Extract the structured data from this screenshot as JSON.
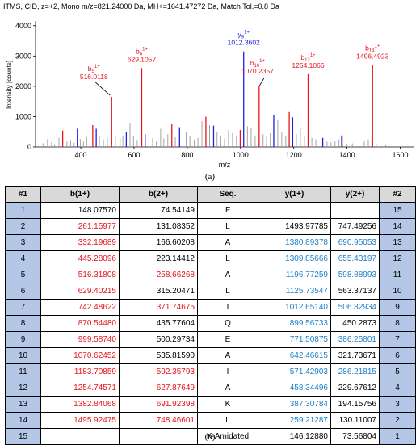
{
  "chart_data": {
    "type": "bar",
    "title": "ITMS, CID, z=+2, Mono m/z=821.24000 Da, MH+=1641.47272 Da, Match Tol.=0.8 Da",
    "xlabel": "m/z",
    "ylabel": "Intensity [counts]",
    "xlim": [
      230,
      1650
    ],
    "ylim": [
      0,
      4100
    ],
    "xticks": [
      400,
      600,
      800,
      1000,
      1200,
      1400,
      1600
    ],
    "yticks": [
      0,
      1000,
      2000,
      3000,
      4000
    ],
    "peaks": [
      {
        "x": 258,
        "y": 120,
        "c": "gray"
      },
      {
        "x": 275,
        "y": 260,
        "c": "gray"
      },
      {
        "x": 290,
        "y": 150,
        "c": "gray"
      },
      {
        "x": 302,
        "y": 90,
        "c": "gray"
      },
      {
        "x": 318,
        "y": 300,
        "c": "gray"
      },
      {
        "x": 332,
        "y": 540,
        "c": "red"
      },
      {
        "x": 348,
        "y": 180,
        "c": "gray"
      },
      {
        "x": 362,
        "y": 230,
        "c": "gray"
      },
      {
        "x": 375,
        "y": 140,
        "c": "gray"
      },
      {
        "x": 387,
        "y": 600,
        "c": "blue"
      },
      {
        "x": 398,
        "y": 260,
        "c": "gray"
      },
      {
        "x": 410,
        "y": 180,
        "c": "gray"
      },
      {
        "x": 422,
        "y": 330,
        "c": "gray"
      },
      {
        "x": 445,
        "y": 720,
        "c": "red"
      },
      {
        "x": 458,
        "y": 600,
        "c": "blue"
      },
      {
        "x": 470,
        "y": 350,
        "c": "gray"
      },
      {
        "x": 485,
        "y": 250,
        "c": "gray"
      },
      {
        "x": 500,
        "y": 300,
        "c": "gray"
      },
      {
        "x": 516,
        "y": 1650,
        "c": "red"
      },
      {
        "x": 530,
        "y": 380,
        "c": "gray"
      },
      {
        "x": 548,
        "y": 290,
        "c": "gray"
      },
      {
        "x": 558,
        "y": 380,
        "c": "gray"
      },
      {
        "x": 571,
        "y": 500,
        "c": "blue"
      },
      {
        "x": 585,
        "y": 800,
        "c": "gray"
      },
      {
        "x": 598,
        "y": 350,
        "c": "gray"
      },
      {
        "x": 612,
        "y": 230,
        "c": "gray"
      },
      {
        "x": 629,
        "y": 2600,
        "c": "red"
      },
      {
        "x": 642,
        "y": 420,
        "c": "blue"
      },
      {
        "x": 656,
        "y": 240,
        "c": "gray"
      },
      {
        "x": 670,
        "y": 290,
        "c": "gray"
      },
      {
        "x": 684,
        "y": 180,
        "c": "gray"
      },
      {
        "x": 700,
        "y": 600,
        "c": "gray"
      },
      {
        "x": 712,
        "y": 280,
        "c": "gray"
      },
      {
        "x": 727,
        "y": 420,
        "c": "gray"
      },
      {
        "x": 742,
        "y": 750,
        "c": "red"
      },
      {
        "x": 755,
        "y": 320,
        "c": "gray"
      },
      {
        "x": 771,
        "y": 650,
        "c": "blue"
      },
      {
        "x": 784,
        "y": 280,
        "c": "gray"
      },
      {
        "x": 796,
        "y": 480,
        "c": "gray"
      },
      {
        "x": 810,
        "y": 350,
        "c": "gray"
      },
      {
        "x": 826,
        "y": 240,
        "c": "gray"
      },
      {
        "x": 840,
        "y": 300,
        "c": "gray"
      },
      {
        "x": 855,
        "y": 850,
        "c": "gray"
      },
      {
        "x": 870,
        "y": 1000,
        "c": "red"
      },
      {
        "x": 884,
        "y": 720,
        "c": "gray"
      },
      {
        "x": 899,
        "y": 700,
        "c": "blue"
      },
      {
        "x": 912,
        "y": 480,
        "c": "gray"
      },
      {
        "x": 926,
        "y": 380,
        "c": "gray"
      },
      {
        "x": 940,
        "y": 270,
        "c": "gray"
      },
      {
        "x": 955,
        "y": 560,
        "c": "gray"
      },
      {
        "x": 970,
        "y": 450,
        "c": "gray"
      },
      {
        "x": 985,
        "y": 380,
        "c": "gray"
      },
      {
        "x": 999,
        "y": 560,
        "c": "red"
      },
      {
        "x": 1012,
        "y": 3150,
        "c": "blue"
      },
      {
        "x": 1026,
        "y": 680,
        "c": "gray"
      },
      {
        "x": 1040,
        "y": 640,
        "c": "gray"
      },
      {
        "x": 1055,
        "y": 380,
        "c": "gray"
      },
      {
        "x": 1070,
        "y": 2000,
        "c": "red"
      },
      {
        "x": 1085,
        "y": 420,
        "c": "gray"
      },
      {
        "x": 1098,
        "y": 330,
        "c": "gray"
      },
      {
        "x": 1112,
        "y": 450,
        "c": "gray"
      },
      {
        "x": 1125,
        "y": 1050,
        "c": "blue"
      },
      {
        "x": 1140,
        "y": 900,
        "c": "gray"
      },
      {
        "x": 1155,
        "y": 480,
        "c": "gray"
      },
      {
        "x": 1170,
        "y": 350,
        "c": "gray"
      },
      {
        "x": 1183,
        "y": 1150,
        "c": "red"
      },
      {
        "x": 1196,
        "y": 980,
        "c": "blue"
      },
      {
        "x": 1210,
        "y": 420,
        "c": "gray"
      },
      {
        "x": 1225,
        "y": 620,
        "c": "gray"
      },
      {
        "x": 1240,
        "y": 380,
        "c": "gray"
      },
      {
        "x": 1254,
        "y": 2400,
        "c": "red"
      },
      {
        "x": 1268,
        "y": 300,
        "c": "gray"
      },
      {
        "x": 1283,
        "y": 250,
        "c": "gray"
      },
      {
        "x": 1309,
        "y": 300,
        "c": "blue"
      },
      {
        "x": 1325,
        "y": 180,
        "c": "gray"
      },
      {
        "x": 1340,
        "y": 150,
        "c": "gray"
      },
      {
        "x": 1355,
        "y": 200,
        "c": "gray"
      },
      {
        "x": 1370,
        "y": 250,
        "c": "gray"
      },
      {
        "x": 1380,
        "y": 380,
        "c": "blue"
      },
      {
        "x": 1382,
        "y": 380,
        "c": "red"
      },
      {
        "x": 1400,
        "y": 100,
        "c": "gray"
      },
      {
        "x": 1420,
        "y": 120,
        "c": "gray"
      },
      {
        "x": 1445,
        "y": 140,
        "c": "gray"
      },
      {
        "x": 1465,
        "y": 180,
        "c": "gray"
      },
      {
        "x": 1480,
        "y": 250,
        "c": "gray"
      },
      {
        "x": 1493,
        "y": 400,
        "c": "gray"
      },
      {
        "x": 1496,
        "y": 2700,
        "c": "red"
      },
      {
        "x": 1510,
        "y": 120,
        "c": "gray"
      },
      {
        "x": 1545,
        "y": 90,
        "c": "gray"
      }
    ],
    "annotations": [
      {
        "ion": "b",
        "sub": "5",
        "sup": "1+",
        "mz": "516.0118",
        "x": 516,
        "y": 1650,
        "color": "red"
      },
      {
        "ion": "b",
        "sub": "6",
        "sup": "1+",
        "mz": "629.1057",
        "x": 629,
        "y": 2600,
        "color": "red"
      },
      {
        "ion": "y",
        "sub": "9",
        "sup": "1+",
        "mz": "1012.3602",
        "x": 1012,
        "y": 3150,
        "color": "blue"
      },
      {
        "ion": "b",
        "sub": "10",
        "sup": "1+",
        "mz": "1070.2357",
        "x": 1070,
        "y": 2000,
        "color": "red"
      },
      {
        "ion": "b",
        "sub": "12",
        "sup": "1+",
        "mz": "1254.1066",
        "x": 1254,
        "y": 2400,
        "color": "red"
      },
      {
        "ion": "b",
        "sub": "14",
        "sup": "1+",
        "mz": "1496.4923",
        "x": 1496,
        "y": 2700,
        "color": "red"
      }
    ],
    "colors": {
      "red": "#e8151b",
      "blue": "#1f1fe0",
      "gray": "#9a9a9a"
    }
  },
  "caption_a": "(a)",
  "caption_b": "(b)",
  "table": {
    "headers": [
      "#1",
      "b(1+)",
      "b(2+)",
      "Seq.",
      "y(1+)",
      "y(2+)",
      "#2"
    ],
    "rows": [
      {
        "n1": "1",
        "b1": "148.07570",
        "b1c": "",
        "b2": "74.54149",
        "b2c": "",
        "seq": "F",
        "y1": "",
        "y1c": "",
        "y2": "",
        "y2c": "",
        "n2": "15"
      },
      {
        "n1": "2",
        "b1": "261.15977",
        "b1c": "red",
        "b2": "131.08352",
        "b2c": "",
        "seq": "L",
        "y1": "1493.97785",
        "y1c": "",
        "y2": "747.49256",
        "y2c": "",
        "n2": "14"
      },
      {
        "n1": "3",
        "b1": "332.19689",
        "b1c": "red",
        "b2": "166.60208",
        "b2c": "",
        "seq": "A",
        "y1": "1380.89378",
        "y1c": "cyan",
        "y2": "690.95053",
        "y2c": "cyan",
        "n2": "13"
      },
      {
        "n1": "4",
        "b1": "445.28096",
        "b1c": "red",
        "b2": "223.14412",
        "b2c": "",
        "seq": "L",
        "y1": "1309.85666",
        "y1c": "cyan",
        "y2": "655.43197",
        "y2c": "cyan",
        "n2": "12"
      },
      {
        "n1": "5",
        "b1": "516.31808",
        "b1c": "red",
        "b2": "258.66268",
        "b2c": "red",
        "seq": "A",
        "y1": "1196.77259",
        "y1c": "cyan",
        "y2": "598.88993",
        "y2c": "cyan",
        "n2": "11"
      },
      {
        "n1": "6",
        "b1": "629.40215",
        "b1c": "red",
        "b2": "315.20471",
        "b2c": "",
        "seq": "L",
        "y1": "1125.73547",
        "y1c": "cyan",
        "y2": "563.37137",
        "y2c": "",
        "n2": "10"
      },
      {
        "n1": "7",
        "b1": "742.48622",
        "b1c": "red",
        "b2": "371.74675",
        "b2c": "red",
        "seq": "I",
        "y1": "1012.65140",
        "y1c": "cyan",
        "y2": "506.82934",
        "y2c": "cyan",
        "n2": "9"
      },
      {
        "n1": "8",
        "b1": "870.54480",
        "b1c": "red",
        "b2": "435.77604",
        "b2c": "",
        "seq": "Q",
        "y1": "899.56733",
        "y1c": "cyan",
        "y2": "450.2873",
        "y2c": "",
        "n2": "8"
      },
      {
        "n1": "9",
        "b1": "999.58740",
        "b1c": "red",
        "b2": "500.29734",
        "b2c": "",
        "seq": "E",
        "y1": "771.50875",
        "y1c": "cyan",
        "y2": "386.25801",
        "y2c": "cyan",
        "n2": "7"
      },
      {
        "n1": "10",
        "b1": "1070.62452",
        "b1c": "red",
        "b2": "535.81590",
        "b2c": "",
        "seq": "A",
        "y1": "642.46615",
        "y1c": "cyan",
        "y2": "321.73671",
        "y2c": "",
        "n2": "6"
      },
      {
        "n1": "11",
        "b1": "1183.70859",
        "b1c": "red",
        "b2": "592.35793",
        "b2c": "red",
        "seq": "I",
        "y1": "571.42903",
        "y1c": "cyan",
        "y2": "286.21815",
        "y2c": "cyan",
        "n2": "5"
      },
      {
        "n1": "12",
        "b1": "1254.74571",
        "b1c": "red",
        "b2": "627.87649",
        "b2c": "red",
        "seq": "A",
        "y1": "458.34496",
        "y1c": "cyan",
        "y2": "229.67612",
        "y2c": "",
        "n2": "4"
      },
      {
        "n1": "13",
        "b1": "1382.84068",
        "b1c": "red",
        "b2": "691.92398",
        "b2c": "red",
        "seq": "K",
        "y1": "387.30784",
        "y1c": "cyan",
        "y2": "194.15756",
        "y2c": "",
        "n2": "3"
      },
      {
        "n1": "14",
        "b1": "1495.92475",
        "b1c": "red",
        "b2": "748.46601",
        "b2c": "red",
        "seq": "L",
        "y1": "259.21287",
        "y1c": "cyan",
        "y2": "130.11007",
        "y2c": "",
        "n2": "2"
      },
      {
        "n1": "15",
        "b1": "",
        "b1c": "",
        "b2": "",
        "b2c": "",
        "seq": "K-Amidated",
        "y1": "146.12880",
        "y1c": "",
        "y2": "73.56804",
        "y2c": "",
        "n2": "1"
      }
    ]
  }
}
